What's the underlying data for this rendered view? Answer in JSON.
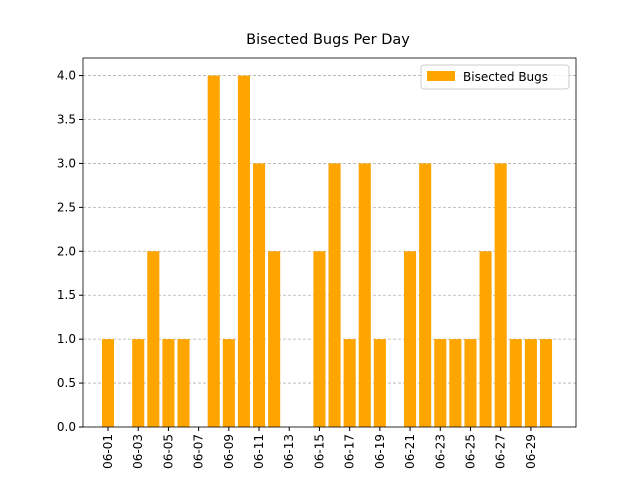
{
  "chart_data": {
    "type": "bar",
    "title": "Bisected Bugs Per Day",
    "categories": [
      "06-01",
      null,
      "06-03",
      null,
      "06-05",
      null,
      "06-07",
      null,
      "06-09",
      null,
      "06-11",
      null,
      "06-13",
      null,
      "06-15",
      null,
      "06-17",
      null,
      "06-19",
      null,
      "06-21",
      null,
      "06-23",
      null,
      "06-25",
      null,
      "06-27",
      null,
      "06-29",
      null
    ],
    "series": [
      {
        "name": "Bisected Bugs",
        "color": "#ffa500",
        "values": [
          1,
          null,
          1,
          2,
          1,
          1,
          null,
          4,
          1,
          4,
          3,
          2,
          null,
          null,
          2,
          3,
          1,
          3,
          1,
          null,
          2,
          3,
          1,
          1,
          1,
          2,
          3,
          1,
          1,
          1
        ]
      }
    ],
    "ylim": [
      0,
      4.2
    ],
    "yticks": [
      {
        "value": 0,
        "label": "0.0"
      },
      {
        "value": 0.5,
        "label": "0.5"
      },
      {
        "value": 1,
        "label": "1.0"
      },
      {
        "value": 1.5,
        "label": "1.5"
      },
      {
        "value": 2,
        "label": "2.0"
      },
      {
        "value": 2.5,
        "label": "2.5"
      },
      {
        "value": 3,
        "label": "3.0"
      },
      {
        "value": 3.5,
        "label": "3.5"
      },
      {
        "value": 4,
        "label": "4.0"
      }
    ],
    "grid": true,
    "legend": "upper right"
  }
}
